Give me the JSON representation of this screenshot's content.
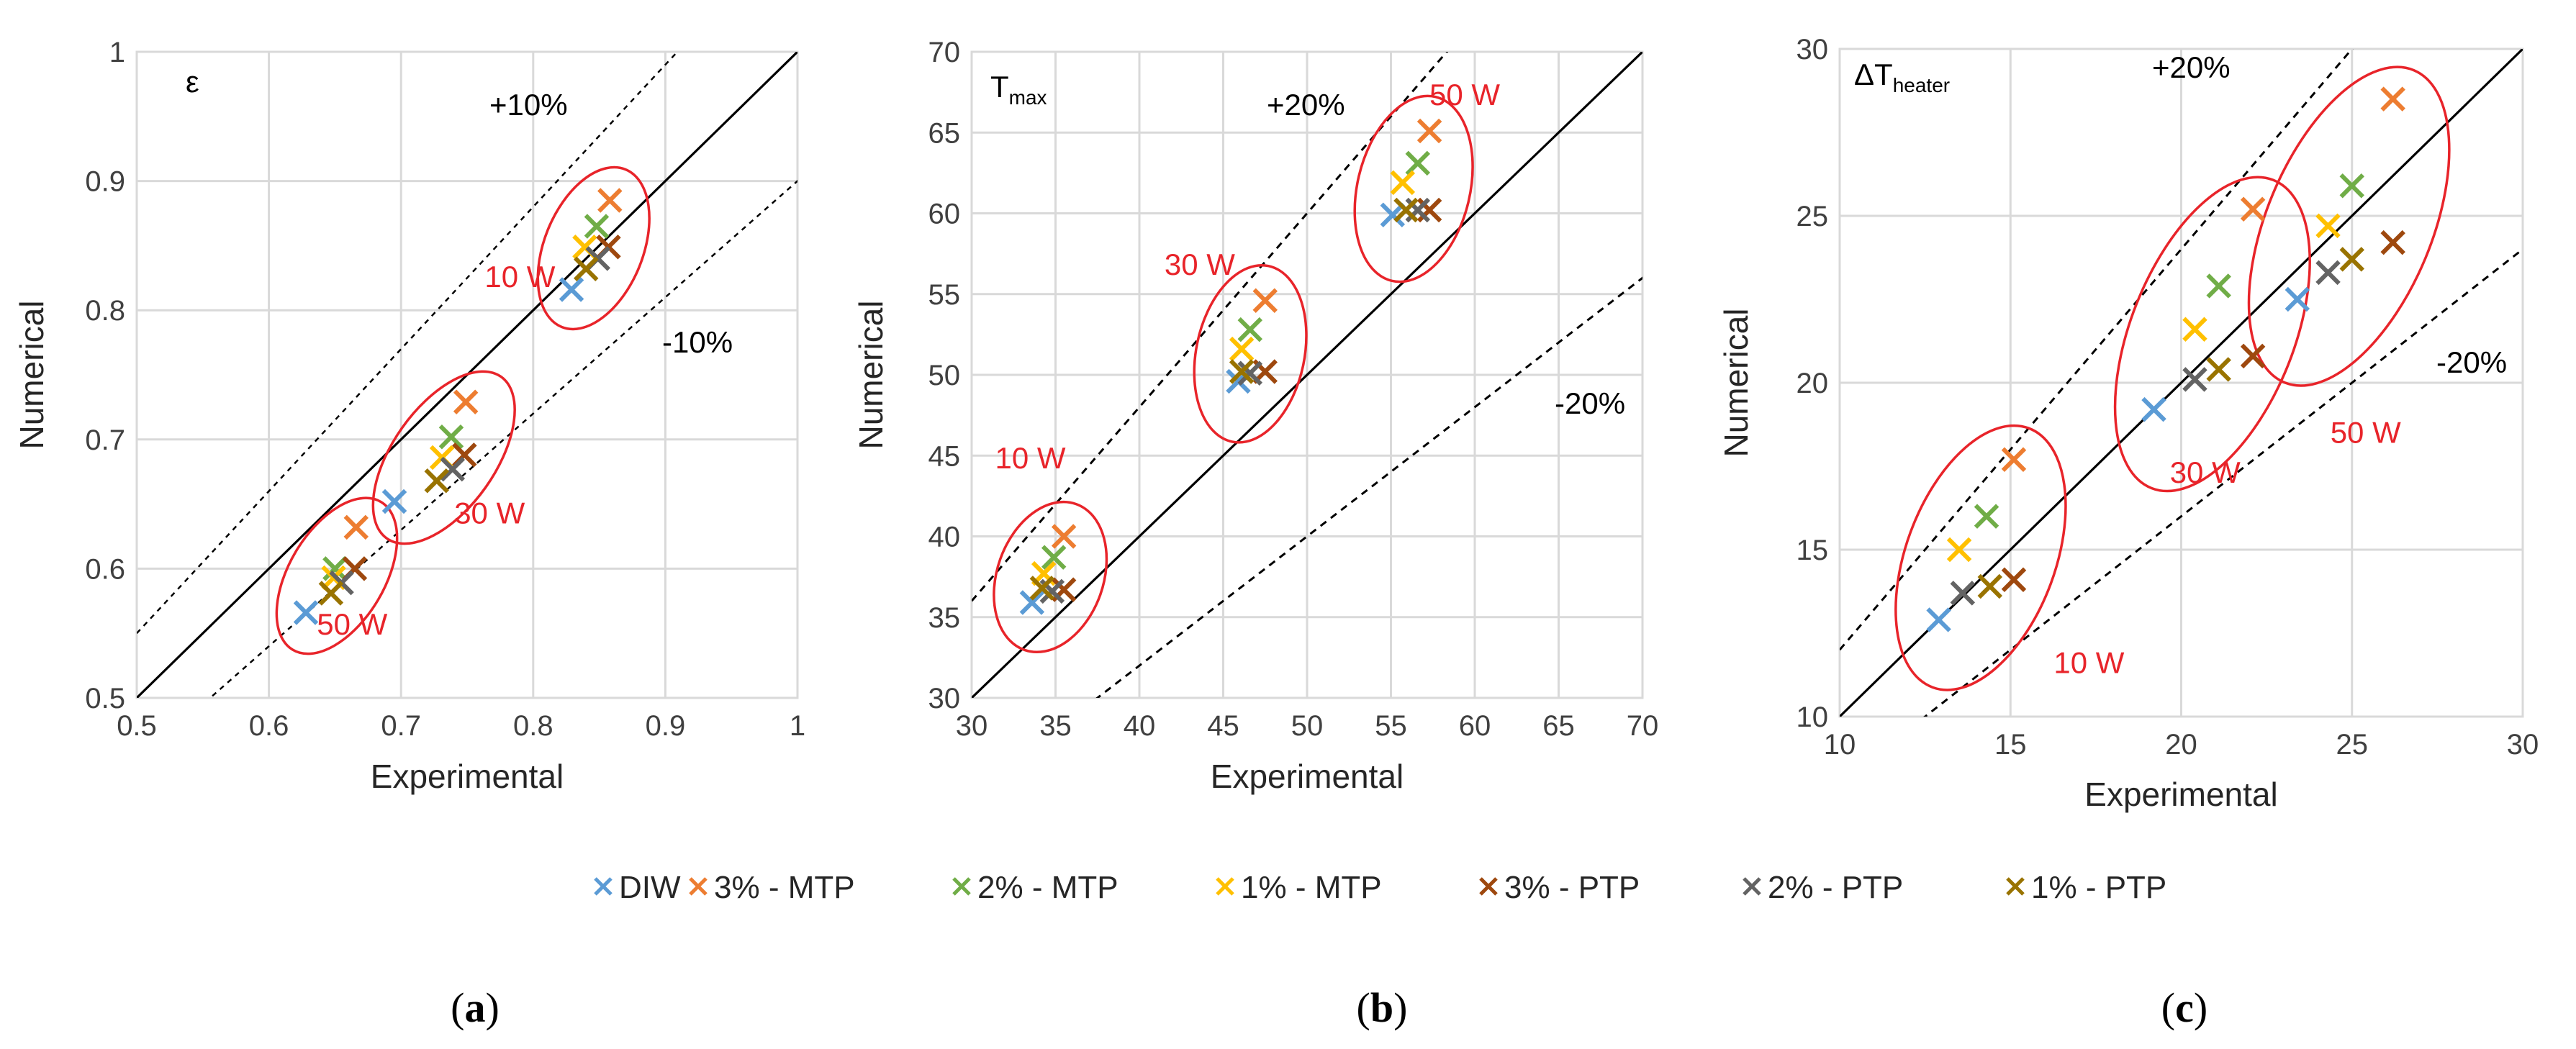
{
  "figure": {
    "legend": [
      {
        "name": "DIW",
        "color": "#5b9bd5"
      },
      {
        "name": "3% - MTP",
        "color": "#ed7d31"
      },
      {
        "name": "2% - MTP",
        "color": "#70ad47"
      },
      {
        "name": "1% - MTP",
        "color": "#ffc000"
      },
      {
        "name": "3% - PTP",
        "color": "#9e480e"
      },
      {
        "name": "2% - PTP",
        "color": "#636363"
      },
      {
        "name": "1% - PTP",
        "color": "#997300"
      }
    ],
    "captions": [
      "a",
      "b",
      "c"
    ]
  },
  "chart_data": [
    {
      "type": "scatter",
      "title": "ε",
      "title_sub": "",
      "xlabel": "Experimental",
      "ylabel": "Numerical",
      "xlim": [
        0.5,
        1
      ],
      "ylim": [
        0.5,
        1
      ],
      "xticks": [
        0.5,
        0.6,
        0.7,
        0.8,
        0.9,
        1
      ],
      "yticks": [
        0.5,
        0.6,
        0.7,
        0.8,
        0.9,
        1
      ],
      "xtick_labels": [
        "0.5",
        "0.6",
        "0.7",
        "0.8",
        "0.9",
        "1"
      ],
      "ytick_labels": [
        "0.5",
        "0.6",
        "0.7",
        "0.8",
        "0.9",
        "1"
      ],
      "grid": true,
      "band_pct": 10,
      "band_labels": [
        "+10%",
        "-10%"
      ],
      "series": [
        {
          "name": "DIW",
          "points": [
            [
              0.628,
              0.566
            ],
            [
              0.695,
              0.652
            ],
            [
              0.829,
              0.816
            ]
          ]
        },
        {
          "name": "3% - MTP",
          "points": [
            [
              0.666,
              0.632
            ],
            [
              0.749,
              0.729
            ],
            [
              0.858,
              0.885
            ]
          ]
        },
        {
          "name": "2% - MTP",
          "points": [
            [
              0.65,
              0.6
            ],
            [
              0.738,
              0.702
            ],
            [
              0.848,
              0.865
            ]
          ]
        },
        {
          "name": "1% - MTP",
          "points": [
            [
              0.649,
              0.593
            ],
            [
              0.731,
              0.686
            ],
            [
              0.839,
              0.849
            ]
          ]
        },
        {
          "name": "3% - PTP",
          "points": [
            [
              0.665,
              0.6
            ],
            [
              0.748,
              0.688
            ],
            [
              0.857,
              0.849
            ]
          ]
        },
        {
          "name": "2% - PTP",
          "points": [
            [
              0.655,
              0.589
            ],
            [
              0.739,
              0.677
            ],
            [
              0.849,
              0.84
            ]
          ]
        },
        {
          "name": "1% - PTP",
          "points": [
            [
              0.647,
              0.581
            ],
            [
              0.727,
              0.668
            ],
            [
              0.84,
              0.832
            ]
          ]
        }
      ],
      "annotations": [
        {
          "text": "10 W",
          "x": 0.79,
          "y": 0.818
        },
        {
          "text": "30 W",
          "x": 0.767,
          "y": 0.635
        },
        {
          "text": "50 W",
          "x": 0.663,
          "y": 0.549
        }
      ]
    },
    {
      "type": "scatter",
      "title": "T",
      "title_sub": "max",
      "xlabel": "Experimental",
      "ylabel": "Numerical",
      "xlim": [
        30,
        70
      ],
      "ylim": [
        30,
        70
      ],
      "xticks": [
        30,
        35,
        40,
        45,
        50,
        55,
        60,
        65,
        70
      ],
      "yticks": [
        30,
        35,
        40,
        45,
        50,
        55,
        60,
        65,
        70
      ],
      "xtick_labels": [
        "30",
        "35",
        "40",
        "45",
        "50",
        "55",
        "60",
        "65",
        "70"
      ],
      "ytick_labels": [
        "30",
        "35",
        "40",
        "45",
        "50",
        "55",
        "60",
        "65",
        "70"
      ],
      "grid": true,
      "band_pct": 20,
      "band_labels": [
        "+20%",
        "-20%"
      ],
      "series": [
        {
          "name": "DIW",
          "points": [
            [
              33.6,
              35.9
            ],
            [
              45.9,
              49.6
            ],
            [
              55.1,
              59.9
            ]
          ]
        },
        {
          "name": "3% - MTP",
          "points": [
            [
              35.5,
              40.0
            ],
            [
              47.5,
              54.6
            ],
            [
              57.3,
              65.1
            ]
          ]
        },
        {
          "name": "2% - MTP",
          "points": [
            [
              34.9,
              38.7
            ],
            [
              46.6,
              52.8
            ],
            [
              56.6,
              63.1
            ]
          ]
        },
        {
          "name": "1% - MTP",
          "points": [
            [
              34.3,
              37.7
            ],
            [
              46.1,
              51.6
            ],
            [
              55.7,
              61.9
            ]
          ]
        },
        {
          "name": "3% - PTP",
          "points": [
            [
              35.5,
              36.7
            ],
            [
              47.5,
              50.2
            ],
            [
              57.3,
              60.2
            ]
          ]
        },
        {
          "name": "2% - PTP",
          "points": [
            [
              34.8,
              36.6
            ],
            [
              46.6,
              50.1
            ],
            [
              56.6,
              60.2
            ]
          ]
        },
        {
          "name": "1% - PTP",
          "points": [
            [
              34.2,
              36.8
            ],
            [
              46.1,
              50.2
            ],
            [
              55.9,
              60.2
            ]
          ]
        }
      ],
      "annotations": [
        {
          "text": "10 W",
          "x": 33.5,
          "y": 44.2
        },
        {
          "text": "30 W",
          "x": 43.6,
          "y": 56.2
        },
        {
          "text": "50 W",
          "x": 59.4,
          "y": 66.7
        }
      ]
    },
    {
      "type": "scatter",
      "title": "ΔT",
      "title_sub": "heater",
      "xlabel": "Experimental",
      "ylabel": "Numerical",
      "xlim": [
        10,
        30
      ],
      "ylim": [
        10,
        30
      ],
      "xticks": [
        10,
        15,
        20,
        25,
        30
      ],
      "yticks": [
        10,
        15,
        20,
        25,
        30
      ],
      "xtick_labels": [
        "10",
        "15",
        "20",
        "25",
        "30"
      ],
      "ytick_labels": [
        "10",
        "15",
        "20",
        "25",
        "30"
      ],
      "grid": true,
      "band_pct": 20,
      "band_labels": [
        "+20%",
        "-20%"
      ],
      "series": [
        {
          "name": "DIW",
          "points": [
            [
              12.9,
              12.9
            ],
            [
              19.2,
              19.2
            ],
            [
              23.4,
              22.5
            ]
          ]
        },
        {
          "name": "3% - MTP",
          "points": [
            [
              15.1,
              17.7
            ],
            [
              22.1,
              25.2
            ],
            [
              26.2,
              28.5
            ]
          ]
        },
        {
          "name": "2% - MTP",
          "points": [
            [
              14.3,
              16.0
            ],
            [
              21.1,
              22.9
            ],
            [
              25.0,
              25.9
            ]
          ]
        },
        {
          "name": "1% - MTP",
          "points": [
            [
              13.5,
              15.0
            ],
            [
              20.4,
              21.6
            ],
            [
              24.3,
              24.7
            ]
          ]
        },
        {
          "name": "3% - PTP",
          "points": [
            [
              15.1,
              14.1
            ],
            [
              22.1,
              20.8
            ],
            [
              26.2,
              24.2
            ]
          ]
        },
        {
          "name": "2% - PTP",
          "points": [
            [
              13.6,
              13.7
            ],
            [
              20.4,
              20.1
            ],
            [
              24.3,
              23.3
            ]
          ]
        },
        {
          "name": "1% - PTP",
          "points": [
            [
              14.4,
              13.9
            ],
            [
              21.1,
              20.4
            ],
            [
              25.0,
              23.7
            ]
          ]
        }
      ],
      "annotations": [
        {
          "text": "10 W",
          "x": 17.3,
          "y": 11.3
        },
        {
          "text": "30 W",
          "x": 20.7,
          "y": 17.0
        },
        {
          "text": "50 W",
          "x": 25.4,
          "y": 18.2
        }
      ]
    }
  ]
}
